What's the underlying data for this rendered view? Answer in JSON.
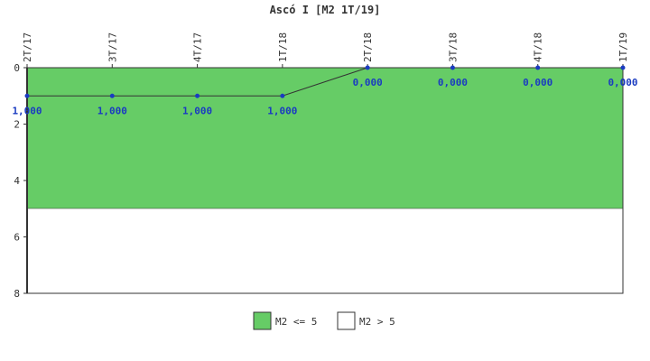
{
  "chart_data": {
    "type": "line",
    "title": "Ascó I [M2 1T/19]",
    "categories": [
      "2T/17",
      "3T/17",
      "4T/17",
      "1T/18",
      "2T/18",
      "3T/18",
      "4T/18",
      "1T/19"
    ],
    "series": [
      {
        "values": [
          1,
          1,
          1,
          1,
          0,
          0,
          0,
          0
        ],
        "labels": [
          "1,000",
          "1,000",
          "1,000",
          "1,000",
          "0,000",
          "0,000",
          "0,000",
          "0,000"
        ],
        "color": "#1a3bc1"
      }
    ],
    "y_ticks": [
      "0",
      "2",
      "4",
      "6",
      "8"
    ],
    "ylim": [
      0,
      8
    ],
    "y_inverted": true,
    "bands": [
      {
        "name": "M2 <= 5",
        "from": 0,
        "to": 5,
        "color": "#66cc66"
      },
      {
        "name": "M2 > 5",
        "from": 5,
        "to": 8,
        "color": "#ffffff"
      }
    ],
    "legend_position": "bottom-center",
    "grid": false
  }
}
